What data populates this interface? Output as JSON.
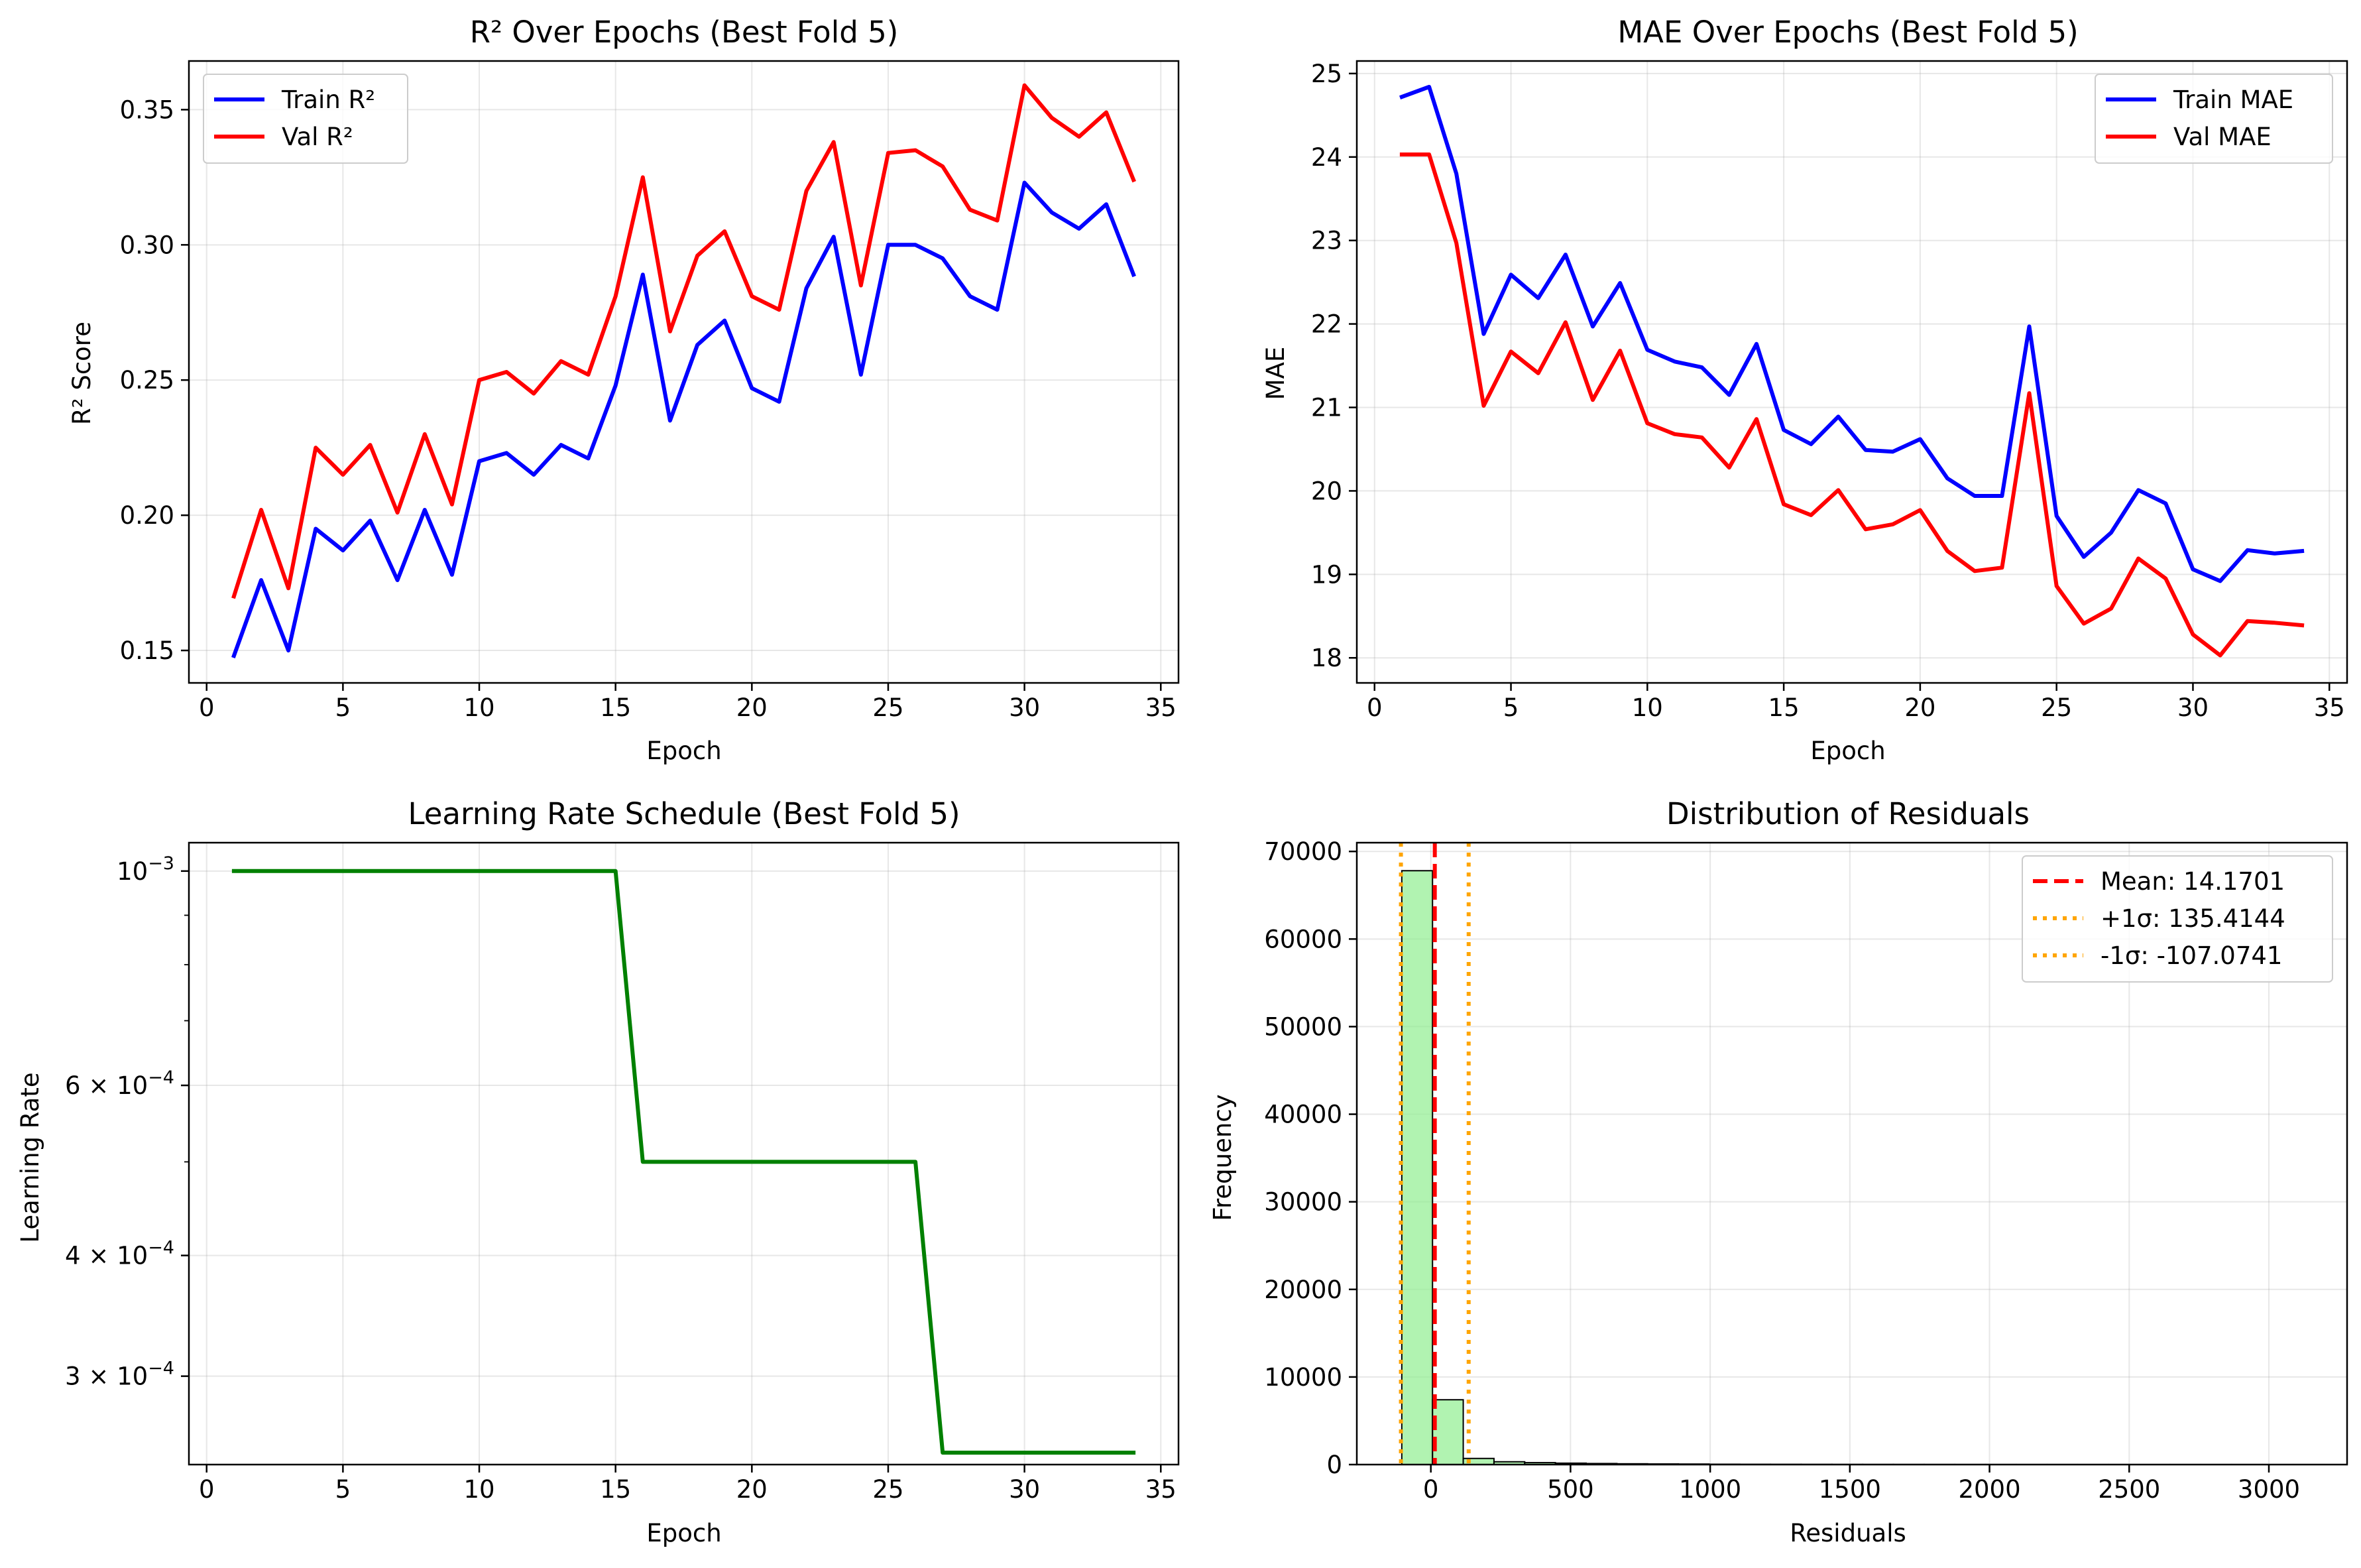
{
  "chart_data": [
    {
      "type": "line",
      "title": "R² Over Epochs (Best Fold 5)",
      "xlabel": "Epoch",
      "ylabel": "R² Score",
      "xlim": [
        -0.65,
        35.65
      ],
      "ylim": [
        0.138,
        0.368
      ],
      "xticks": [
        0,
        5,
        10,
        15,
        20,
        25,
        30,
        35
      ],
      "yticks": [
        0.15,
        0.2,
        0.25,
        0.3,
        0.35
      ],
      "ytick_labels": [
        "0.15",
        "0.20",
        "0.25",
        "0.30",
        "0.35"
      ],
      "grid": true,
      "legend_position": "top-left",
      "x": [
        1,
        2,
        3,
        4,
        5,
        6,
        7,
        8,
        9,
        10,
        11,
        12,
        13,
        14,
        15,
        16,
        17,
        18,
        19,
        20,
        21,
        22,
        23,
        24,
        25,
        26,
        27,
        28,
        29,
        30,
        31,
        32,
        33,
        34
      ],
      "series": [
        {
          "name": "Train R²",
          "color": "#0000ff",
          "values": [
            0.148,
            0.176,
            0.15,
            0.195,
            0.187,
            0.198,
            0.176,
            0.202,
            0.178,
            0.22,
            0.223,
            0.215,
            0.226,
            0.221,
            0.248,
            0.289,
            0.235,
            0.263,
            0.272,
            0.247,
            0.242,
            0.284,
            0.303,
            0.252,
            0.3,
            0.3,
            0.295,
            0.281,
            0.276,
            0.323,
            0.312,
            0.306,
            0.315,
            0.289
          ]
        },
        {
          "name": "Val R²",
          "color": "#ff0000",
          "values": [
            0.17,
            0.202,
            0.173,
            0.225,
            0.215,
            0.226,
            0.201,
            0.23,
            0.204,
            0.25,
            0.253,
            0.245,
            0.257,
            0.252,
            0.281,
            0.325,
            0.268,
            0.296,
            0.305,
            0.281,
            0.276,
            0.32,
            0.338,
            0.285,
            0.334,
            0.335,
            0.329,
            0.313,
            0.309,
            0.359,
            0.347,
            0.34,
            0.349,
            0.324
          ]
        }
      ]
    },
    {
      "type": "line",
      "title": "MAE Over Epochs (Best Fold 5)",
      "xlabel": "Epoch",
      "ylabel": "MAE",
      "xlim": [
        -0.65,
        35.65
      ],
      "ylim": [
        17.7,
        25.15
      ],
      "xticks": [
        0,
        5,
        10,
        15,
        20,
        25,
        30,
        35
      ],
      "yticks": [
        18,
        19,
        20,
        21,
        22,
        23,
        24,
        25
      ],
      "ytick_labels": [
        "18",
        "19",
        "20",
        "21",
        "22",
        "23",
        "24",
        "25"
      ],
      "grid": true,
      "legend_position": "top-right",
      "x": [
        1,
        2,
        3,
        4,
        5,
        6,
        7,
        8,
        9,
        10,
        11,
        12,
        13,
        14,
        15,
        16,
        17,
        18,
        19,
        20,
        21,
        22,
        23,
        24,
        25,
        26,
        27,
        28,
        29,
        30,
        31,
        32,
        33,
        34
      ],
      "series": [
        {
          "name": "Train MAE",
          "color": "#0000ff",
          "values": [
            24.72,
            24.84,
            23.8,
            21.88,
            22.59,
            22.31,
            22.83,
            21.97,
            22.49,
            21.69,
            21.55,
            21.48,
            21.15,
            21.76,
            20.73,
            20.56,
            20.89,
            20.49,
            20.47,
            20.62,
            20.15,
            19.94,
            19.94,
            21.97,
            19.7,
            19.21,
            19.5,
            20.01,
            19.85,
            19.06,
            18.92,
            19.29,
            19.25,
            19.28
          ]
        },
        {
          "name": "Val MAE",
          "color": "#ff0000",
          "values": [
            24.03,
            24.03,
            22.97,
            21.02,
            21.67,
            21.41,
            22.02,
            21.09,
            21.68,
            20.81,
            20.68,
            20.64,
            20.28,
            20.86,
            19.84,
            19.71,
            20.01,
            19.54,
            19.6,
            19.77,
            19.28,
            19.04,
            19.08,
            21.17,
            18.86,
            18.41,
            18.59,
            19.19,
            18.95,
            18.28,
            18.03,
            18.44,
            18.42,
            18.39
          ]
        }
      ]
    },
    {
      "type": "line",
      "title": "Learning Rate Schedule (Best Fold 5)",
      "xlabel": "Epoch",
      "ylabel": "Learning Rate",
      "xlim": [
        -0.65,
        35.65
      ],
      "ylim": [
        0.000243,
        0.00107
      ],
      "yscale": "log",
      "xticks": [
        0,
        5,
        10,
        15,
        20,
        25,
        30,
        35
      ],
      "yticks": [
        0.001,
        0.0006,
        0.0004,
        0.0003
      ],
      "ytick_labels": [
        {
          "base": "10",
          "exp": "−3"
        },
        {
          "base": "6 × 10",
          "exp": "−4"
        },
        {
          "base": "4 × 10",
          "exp": "−4"
        },
        {
          "base": "3 × 10",
          "exp": "−4"
        }
      ],
      "yminor_ticks": [
        0.0009,
        0.0008,
        0.0007,
        0.0005
      ],
      "grid": true,
      "x": [
        1,
        2,
        3,
        4,
        5,
        6,
        7,
        8,
        9,
        10,
        11,
        12,
        13,
        14,
        15,
        16,
        17,
        18,
        19,
        20,
        21,
        22,
        23,
        24,
        25,
        26,
        27,
        28,
        29,
        30,
        31,
        32,
        33,
        34
      ],
      "series": [
        {
          "color": "#008000",
          "values": [
            0.001,
            0.001,
            0.001,
            0.001,
            0.001,
            0.001,
            0.001,
            0.001,
            0.001,
            0.001,
            0.001,
            0.001,
            0.001,
            0.001,
            0.001,
            0.0005,
            0.0005,
            0.0005,
            0.0005,
            0.0005,
            0.0005,
            0.0005,
            0.0005,
            0.0005,
            0.0005,
            0.0005,
            0.00025,
            0.00025,
            0.00025,
            0.00025,
            0.00025,
            0.00025,
            0.00025,
            0.00025
          ]
        }
      ]
    },
    {
      "type": "bar",
      "subtype": "histogram",
      "title": "Distribution of Residuals",
      "xlabel": "Residuals",
      "ylabel": "Frequency",
      "xlim": [
        -265,
        3280
      ],
      "ylim": [
        0,
        71000
      ],
      "xticks": [
        0,
        500,
        1000,
        1500,
        2000,
        2500,
        3000
      ],
      "yticks": [
        0,
        10000,
        20000,
        30000,
        40000,
        50000,
        60000,
        70000
      ],
      "ytick_labels": [
        "0",
        "10000",
        "20000",
        "30000",
        "40000",
        "50000",
        "60000",
        "70000"
      ],
      "grid": true,
      "legend_position": "top-right",
      "bar_color": "#90ee90",
      "bin_edges": [
        -104,
        6,
        116,
        226,
        336,
        446,
        556,
        666,
        776,
        886,
        996,
        1106,
        1216,
        1326,
        1436,
        1546,
        1656,
        1766,
        1876,
        1986,
        2096,
        2206,
        2316,
        2426,
        2536,
        2646,
        2756,
        2866,
        2976,
        3086,
        3196
      ],
      "counts": [
        67800,
        7400,
        700,
        320,
        220,
        160,
        120,
        90,
        70,
        60,
        40,
        30,
        25,
        20,
        15,
        12,
        10,
        8,
        6,
        5,
        4,
        4,
        3,
        3,
        2,
        2,
        2,
        2,
        1,
        1
      ],
      "lines": [
        {
          "label": "Mean: 14.1701",
          "value": 14.1701,
          "color": "#ff0000",
          "style": "dashed"
        },
        {
          "label": "+1σ: 135.4144",
          "value": 135.4144,
          "color": "#ffa500",
          "style": "dotted"
        },
        {
          "label": "-1σ: -107.0741",
          "value": -107.0741,
          "color": "#ffa500",
          "style": "dotted"
        }
      ]
    }
  ]
}
